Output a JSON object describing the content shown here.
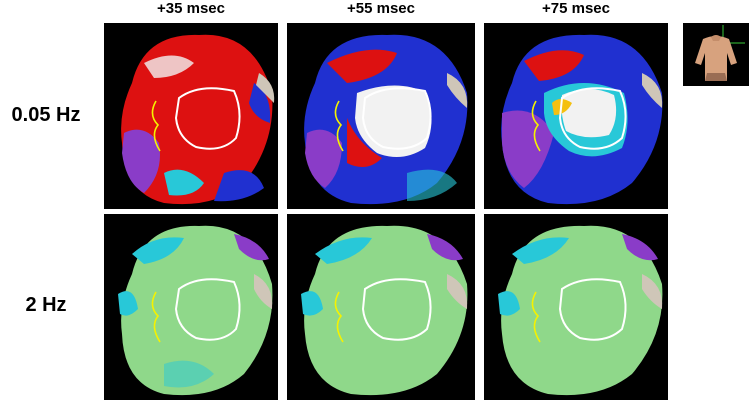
{
  "columns": [
    "+35 msec",
    "+55 msec",
    "+75 msec"
  ],
  "rows": [
    "0.05 Hz",
    "2 Hz"
  ],
  "colors": {
    "background": "#ffffff",
    "panel": "#000000",
    "contour": "#ffffff",
    "line": "#f5f200",
    "surface_2hz": "#8fd88a",
    "cyan": "#28c8d8",
    "red": "#dd1111",
    "blue": "#2030d0",
    "purple": "#8a3cc8"
  }
}
